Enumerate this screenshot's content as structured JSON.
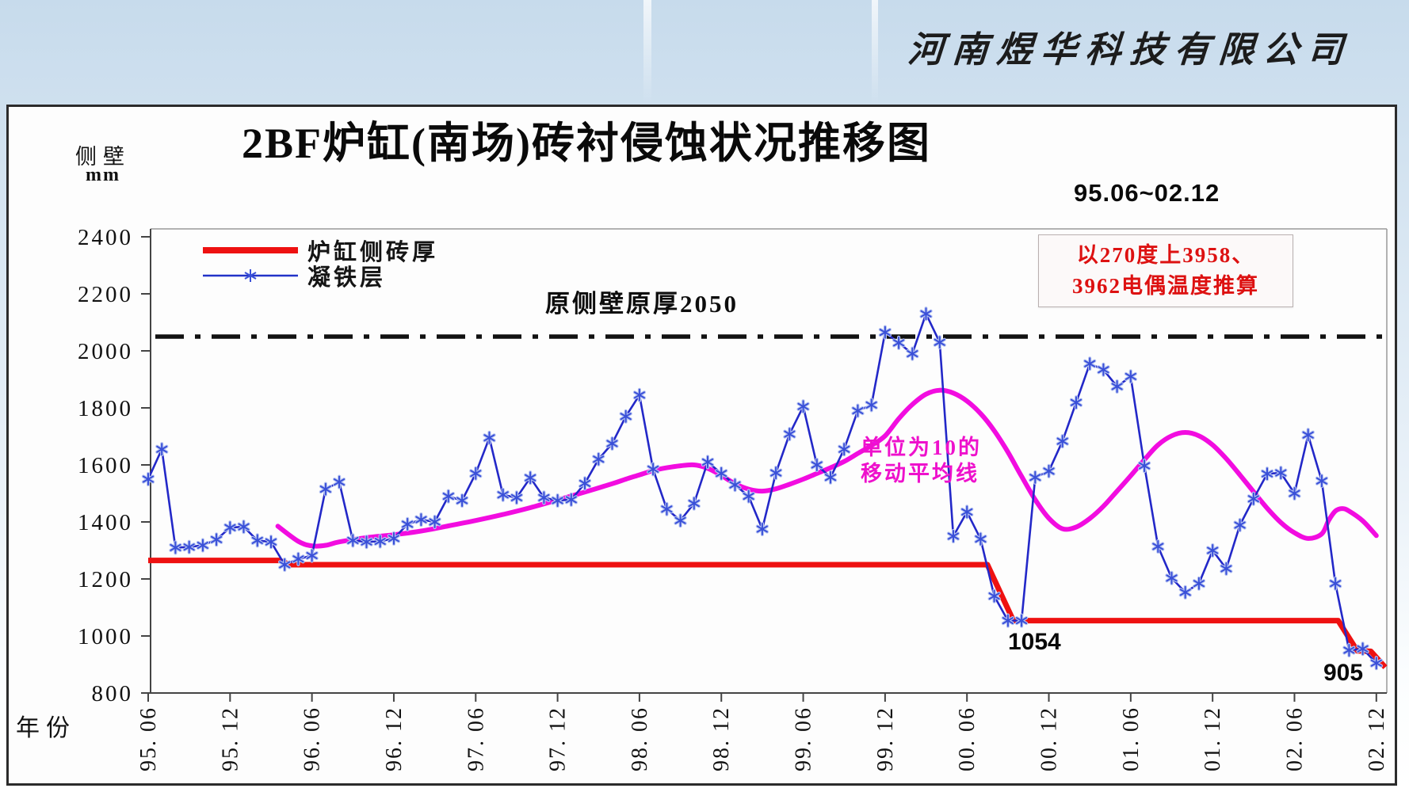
{
  "page": {
    "company": "河南煜华科技有限公司",
    "title": "2BF炉缸(南场)砖衬侵蚀状况推移图",
    "period": "95.06~02.12",
    "y_unit_line1": "侧壁",
    "y_unit_line2": "mm",
    "x_axis_title": "年份",
    "legend": [
      {
        "label": "炉缸侧砖厚",
        "color": "#ee1111"
      },
      {
        "label": "凝铁层",
        "color": "#2233c8"
      }
    ],
    "annotations": {
      "original_wall": "原侧壁原厚2050",
      "note_line1": "以270度上3958、",
      "note_line2": "3962电偶温度推算",
      "ma_line1": "单位为10的",
      "ma_line2": "移动平均线",
      "low_point_1": "1054",
      "low_point_2": "905"
    },
    "colors": {
      "brick_line": "#ee1111",
      "iron_line": "#2328c8",
      "marker": "#3a50d8",
      "marker_halo": "#b9c6f2",
      "moving_average": "#f20ce0",
      "reference_line": "#111111",
      "note_text": "#dd1111",
      "axis": "#444444",
      "plot_border": "#9a9a9a"
    }
  },
  "chart_data": {
    "type": "line",
    "title": "2BF炉缸(南场)砖衬侵蚀状况推移图",
    "subtitle": "95.06~02.12",
    "ylabel": "侧壁 mm",
    "xlabel": "年份",
    "ylim": [
      800,
      2400
    ],
    "y_ticks": [
      2400,
      2200,
      2000,
      1800,
      1600,
      1400,
      1200,
      1000,
      800
    ],
    "x_ticks": [
      "95. 06",
      "95. 12",
      "96. 06",
      "96. 12",
      "97. 06",
      "97. 12",
      "98. 06",
      "98. 12",
      "99. 06",
      "99. 12",
      "00. 06",
      "00. 12",
      "01. 06",
      "01. 12",
      "02. 06",
      "02. 12"
    ],
    "x_tick_month_step": 6,
    "months_total": 91,
    "grid": false,
    "legend_position": "top-left-inside",
    "reference_line": {
      "label": "原侧壁原厚2050",
      "value": 2050,
      "style": "dash-dot"
    },
    "series": [
      {
        "name": "凝铁层",
        "type": "line",
        "marker": "asterisk",
        "x_unit": "month-index from 95.06",
        "values": [
          1550,
          1655,
          1310,
          1312,
          1318,
          1338,
          1380,
          1383,
          1335,
          1330,
          1250,
          1270,
          1282,
          1515,
          1540,
          1335,
          1330,
          1332,
          1342,
          1392,
          1408,
          1400,
          1490,
          1475,
          1570,
          1695,
          1495,
          1485,
          1555,
          1485,
          1475,
          1478,
          1535,
          1620,
          1675,
          1770,
          1845,
          1585,
          1445,
          1405,
          1465,
          1610,
          1570,
          1530,
          1490,
          1375,
          1572,
          1708,
          1805,
          1600,
          1556,
          1655,
          1790,
          1810,
          2065,
          2028,
          1990,
          2130,
          2030,
          1350,
          1435,
          1340,
          1140,
          1054,
          1054,
          1556,
          1578,
          1683,
          1819,
          1955,
          1934,
          1875,
          1910,
          1597,
          1314,
          1203,
          1153,
          1184,
          1300,
          1236,
          1389,
          1481,
          1569,
          1572,
          1500,
          1705,
          1544,
          1184,
          950,
          955,
          905
        ]
      },
      {
        "name": "炉缸侧砖厚",
        "type": "step-line",
        "points": [
          [
            0,
            1265
          ],
          [
            9.6,
            1265
          ],
          [
            10.4,
            1250
          ],
          [
            61.5,
            1250
          ],
          [
            63.4,
            1054
          ],
          [
            87.2,
            1054
          ],
          [
            88.6,
            948
          ],
          [
            89.6,
            946
          ],
          [
            90.7,
            890
          ]
        ]
      },
      {
        "name": "移动平均线(单位为10)",
        "type": "smooth-line",
        "points": [
          [
            9.5,
            1385
          ],
          [
            11,
            1332
          ],
          [
            12,
            1316
          ],
          [
            13,
            1318
          ],
          [
            14,
            1330
          ],
          [
            16,
            1345
          ],
          [
            18,
            1355
          ],
          [
            20,
            1368
          ],
          [
            22,
            1386
          ],
          [
            24,
            1405
          ],
          [
            26,
            1426
          ],
          [
            28,
            1450
          ],
          [
            30,
            1477
          ],
          [
            32,
            1505
          ],
          [
            34,
            1534
          ],
          [
            35,
            1550
          ],
          [
            36,
            1565
          ],
          [
            37,
            1580
          ],
          [
            38,
            1590
          ],
          [
            39,
            1597
          ],
          [
            40,
            1600
          ],
          [
            41,
            1588
          ],
          [
            42,
            1563
          ],
          [
            43,
            1534
          ],
          [
            44,
            1515
          ],
          [
            45,
            1508
          ],
          [
            46,
            1516
          ],
          [
            47,
            1532
          ],
          [
            48,
            1550
          ],
          [
            49,
            1570
          ],
          [
            50,
            1590
          ],
          [
            51,
            1612
          ],
          [
            52,
            1640
          ],
          [
            53,
            1668
          ],
          [
            54,
            1702
          ],
          [
            55,
            1762
          ],
          [
            56,
            1812
          ],
          [
            57,
            1848
          ],
          [
            58,
            1862
          ],
          [
            59,
            1852
          ],
          [
            60,
            1824
          ],
          [
            61,
            1780
          ],
          [
            62,
            1720
          ],
          [
            63,
            1645
          ],
          [
            64,
            1560
          ],
          [
            65,
            1478
          ],
          [
            66,
            1413
          ],
          [
            67,
            1376
          ],
          [
            68,
            1382
          ],
          [
            69,
            1412
          ],
          [
            70,
            1455
          ],
          [
            71,
            1508
          ],
          [
            72,
            1562
          ],
          [
            73,
            1618
          ],
          [
            74,
            1670
          ],
          [
            75,
            1702
          ],
          [
            76,
            1714
          ],
          [
            77,
            1702
          ],
          [
            78,
            1670
          ],
          [
            79,
            1622
          ],
          [
            80,
            1565
          ],
          [
            81,
            1506
          ],
          [
            82,
            1448
          ],
          [
            83,
            1398
          ],
          [
            84,
            1362
          ],
          [
            85,
            1342
          ],
          [
            86,
            1358
          ],
          [
            86.5,
            1405
          ],
          [
            87,
            1438
          ],
          [
            87.5,
            1447
          ],
          [
            88,
            1438
          ],
          [
            89,
            1404
          ],
          [
            90,
            1352
          ]
        ]
      }
    ],
    "point_labels": [
      {
        "text": "1054",
        "month": 63,
        "value": 1054
      },
      {
        "text": "905",
        "month": 90,
        "value": 905
      }
    ]
  }
}
